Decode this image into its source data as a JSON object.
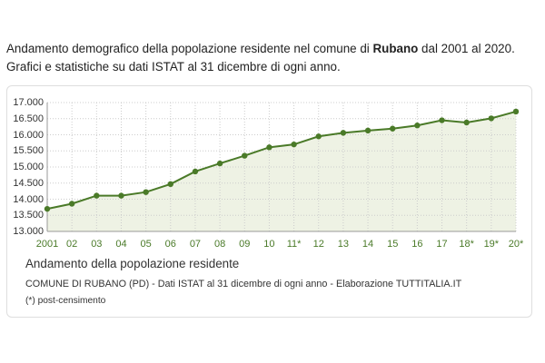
{
  "intro": {
    "before": "Andamento demografico della popolazione residente nel comune di ",
    "comune": "Rubano",
    "after": " dal 2001 al 2020. Grafici e statistiche su dati ISTAT al 31 dicembre di ogni anno."
  },
  "chart_data": {
    "type": "area",
    "title": "Andamento della popolazione residente",
    "source": "COMUNE DI RUBANO (PD) - Dati ISTAT al 31 dicembre di ogni anno - Elaborazione TUTTITALIA.IT",
    "note": "(*) post-censimento",
    "x_labels": [
      "2001",
      "02",
      "03",
      "04",
      "05",
      "06",
      "07",
      "08",
      "09",
      "10",
      "11*",
      "12",
      "13",
      "14",
      "15",
      "16",
      "17",
      "18*",
      "19*",
      "20*"
    ],
    "values": [
      13700,
      13860,
      14110,
      14110,
      14220,
      14470,
      14860,
      15110,
      15350,
      15610,
      15700,
      15950,
      16060,
      16130,
      16190,
      16290,
      16450,
      16380,
      16510,
      16720
    ],
    "ylim": [
      13000,
      17000
    ],
    "y_ticks": [
      13000,
      13500,
      14000,
      14500,
      15000,
      15500,
      16000,
      16500,
      17000
    ],
    "y_tick_labels": [
      "13.000",
      "13.500",
      "14.000",
      "14.500",
      "15.000",
      "15.500",
      "16.000",
      "16.500",
      "17.000"
    ],
    "grid": true,
    "colors": {
      "line": "#4a7a28",
      "fill": "#eef2e4",
      "grid": "#cccccc",
      "x_label": "#4a7a28"
    }
  }
}
